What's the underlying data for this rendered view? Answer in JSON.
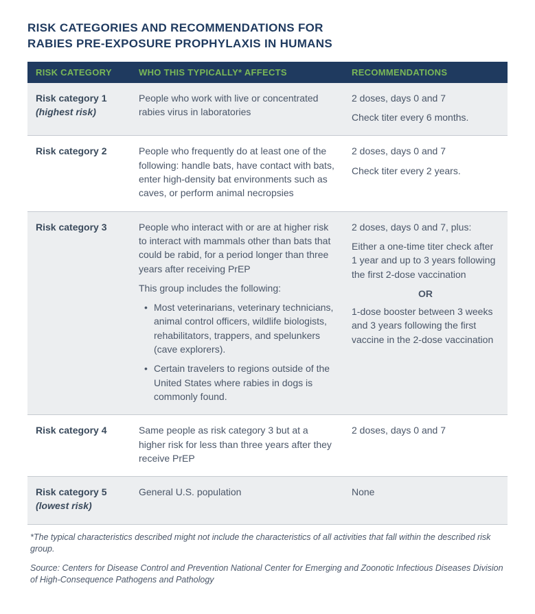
{
  "colors": {
    "title": "#1f3a5f",
    "header_bg": "#1f3a5f",
    "header_text": "#7ab857",
    "row_alt_bg": "#eceef0",
    "row_plain_bg": "#ffffff",
    "body_text": "#4a5668",
    "border": "#c5cad0"
  },
  "title_line1": "RISK CATEGORIES AND RECOMMENDATIONS FOR",
  "title_line2": "RABIES PRE-EXPOSURE PROPHYLAXIS IN HUMANS",
  "columns": {
    "c1": "RISK CATEGORY",
    "c2": "WHO THIS TYPICALLY* AFFECTS",
    "c3": "RECOMMENDATIONS"
  },
  "rows": {
    "r1": {
      "cat": "Risk category 1",
      "note": "(highest risk)",
      "affects_p1": "People who work with live or concentrated rabies virus in laboratories",
      "rec_p1": "2 doses, days 0 and 7",
      "rec_p2": "Check titer every 6 months."
    },
    "r2": {
      "cat": "Risk category 2",
      "affects_p1": "People who frequently do at least one of the following: handle bats, have contact with bats, enter high-density bat environments such as caves, or perform animal necropsies",
      "rec_p1": "2 doses, days 0 and 7",
      "rec_p2": "Check titer every 2 years."
    },
    "r3": {
      "cat": "Risk category 3",
      "affects_p1": "People who interact with or are at higher risk to interact with mammals other than bats that could be rabid, for a period longer than three years after receiving PrEP",
      "affects_p2": "This group includes the following:",
      "affects_b1": "Most veterinarians, veterinary technicians, animal control officers, wildlife biologists, rehabilitators, trappers, and spelunkers (cave explorers).",
      "affects_b2": "Certain travelers to regions outside of the United States where rabies in dogs is commonly found.",
      "rec_p1": "2 doses, days 0 and 7, plus:",
      "rec_p2": "Either a one-time titer check after 1 year and up to 3 years following the first 2-dose vaccination",
      "rec_or": "OR",
      "rec_p3": "1-dose booster between 3 weeks and 3 years following the first vaccine in the 2-dose vaccination"
    },
    "r4": {
      "cat": "Risk category 4",
      "affects_p1": "Same people as risk category 3 but at a higher risk for less than three years after they receive PrEP",
      "rec_p1": "2 doses, days 0 and 7"
    },
    "r5": {
      "cat": "Risk category 5",
      "note": "(lowest risk)",
      "affects_p1": "General U.S. population",
      "rec_p1": "None"
    }
  },
  "footnote1": "*The typical characteristics described might not include the characteristics of all activities that fall within the described risk group.",
  "footnote2": "Source: Centers for Disease Control and Prevention National Center for Emerging and Zoonotic Infectious Diseases Division of High-Consequence Pathogens and Pathology"
}
